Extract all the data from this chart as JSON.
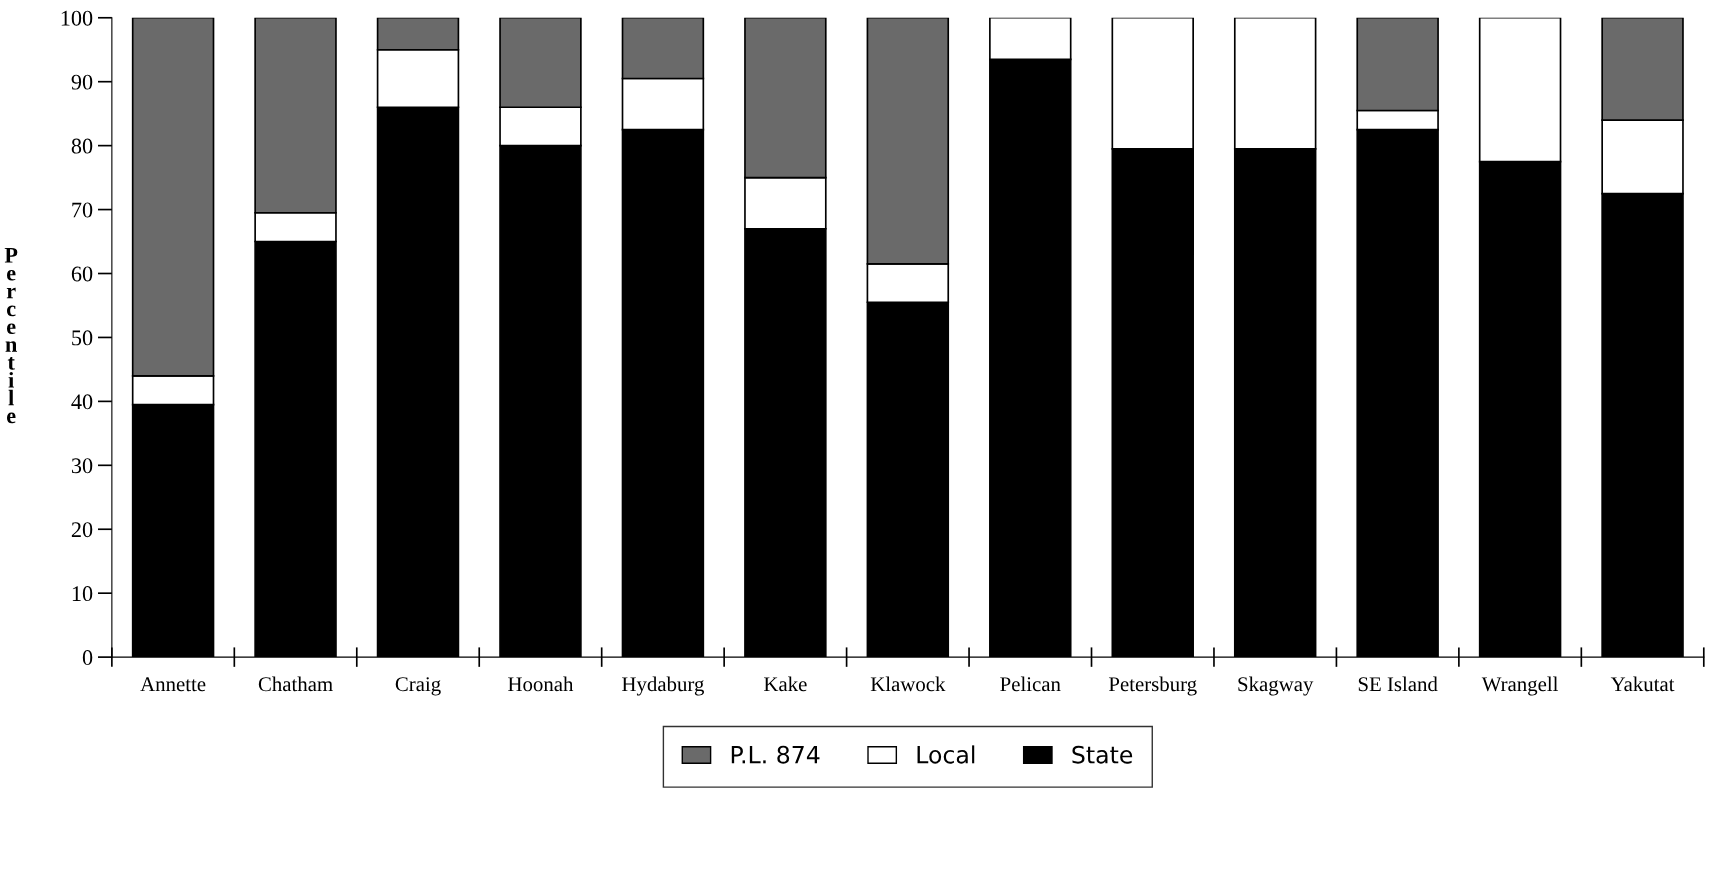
{
  "chart_data": {
    "type": "bar",
    "stacked": true,
    "ylabel": "Percentile",
    "categories": [
      "Annette",
      "Chatham",
      "Craig",
      "Hoonah",
      "Hydaburg",
      "Kake",
      "Klawock",
      "Pelican",
      "Petersburg",
      "Skagway",
      "SE Island",
      "Wrangell",
      "Yakutat"
    ],
    "series": [
      {
        "name": "State",
        "color": "#000000",
        "values": [
          39.5,
          65,
          86,
          80,
          82.5,
          67,
          55.5,
          93.5,
          79.5,
          79.5,
          82.5,
          77.5,
          72.5
        ]
      },
      {
        "name": "Local",
        "color": "#ffffff",
        "values": [
          4.5,
          4.5,
          9,
          6,
          8,
          8,
          6,
          6.5,
          20.5,
          20.5,
          3,
          22.5,
          11.5
        ]
      },
      {
        "name": "P.L. 874",
        "color": "#6a6a6a",
        "values": [
          56,
          30.5,
          5,
          14,
          9.5,
          25,
          38.5,
          0,
          0,
          0,
          14.5,
          0,
          16
        ]
      }
    ],
    "ylim": [
      0,
      100
    ],
    "yticks": [
      0,
      10,
      20,
      30,
      40,
      50,
      60,
      70,
      80,
      90,
      100
    ],
    "grid": false,
    "legend": "bottom"
  }
}
